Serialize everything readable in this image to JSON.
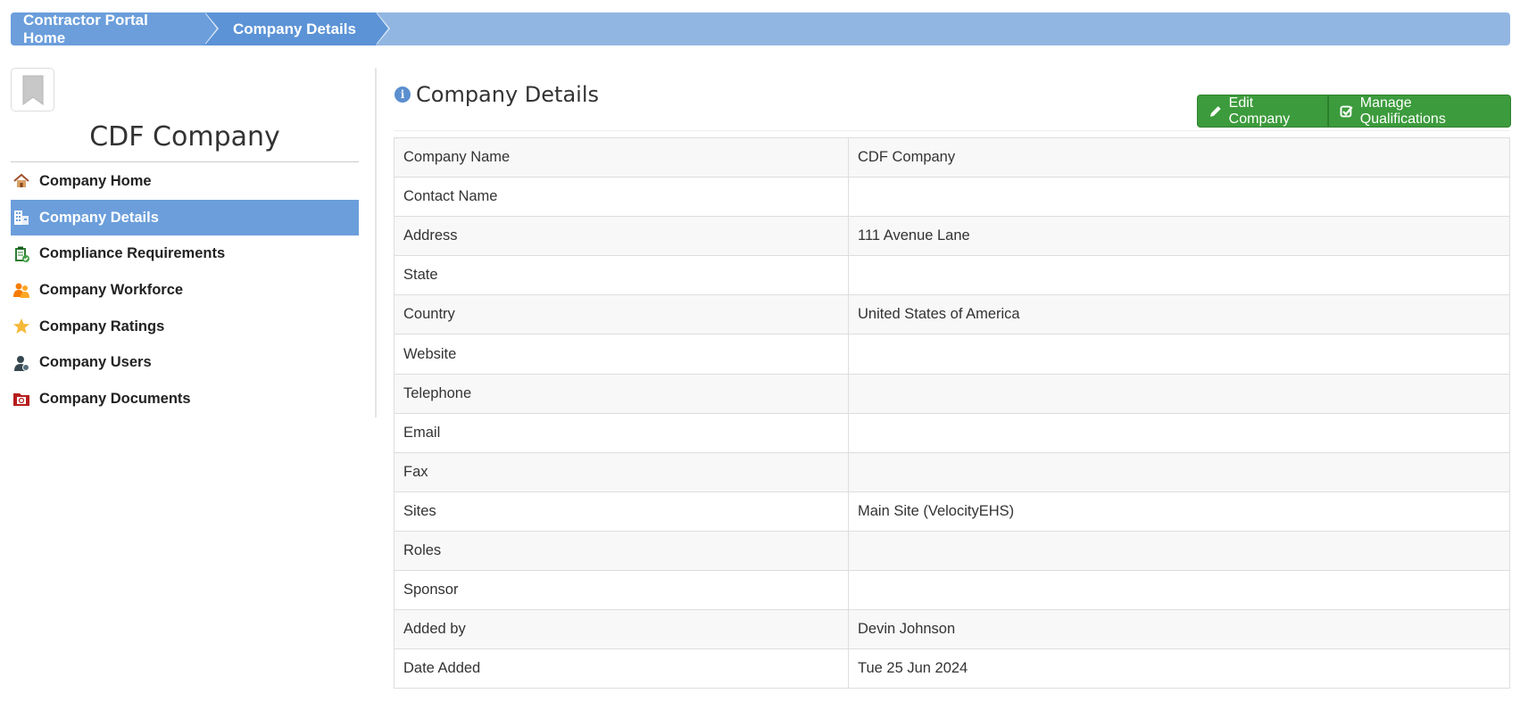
{
  "breadcrumb": {
    "items": [
      {
        "label": "Contractor Portal Home"
      },
      {
        "label": "Company Details"
      }
    ]
  },
  "sidebar": {
    "company_name": "CDF Company",
    "items": [
      {
        "label": "Company Home",
        "icon": "house-icon"
      },
      {
        "label": "Company Details",
        "icon": "building-icon",
        "active": true
      },
      {
        "label": "Compliance Requirements",
        "icon": "clipboard-check-icon"
      },
      {
        "label": "Company Workforce",
        "icon": "workers-icon"
      },
      {
        "label": "Company Ratings",
        "icon": "star-icon"
      },
      {
        "label": "Company Users",
        "icon": "user-admin-icon"
      },
      {
        "label": "Company Documents",
        "icon": "folder-documents-icon"
      }
    ]
  },
  "main": {
    "title": "Company Details",
    "buttons": {
      "edit": "Edit Company",
      "manage": "Manage Qualifications"
    },
    "rows": [
      {
        "label": "Company Name",
        "value": "CDF Company"
      },
      {
        "label": "Contact Name",
        "value": ""
      },
      {
        "label": "Address",
        "value": "111 Avenue Lane"
      },
      {
        "label": "State",
        "value": ""
      },
      {
        "label": "Country",
        "value": "United States of America"
      },
      {
        "label": "Website",
        "value": ""
      },
      {
        "label": "Telephone",
        "value": ""
      },
      {
        "label": "Email",
        "value": ""
      },
      {
        "label": "Fax",
        "value": ""
      },
      {
        "label": "Sites",
        "value": "Main Site (VelocityEHS)"
      },
      {
        "label": "Roles",
        "value": ""
      },
      {
        "label": "Sponsor",
        "value": ""
      },
      {
        "label": "Added by",
        "value": "Devin Johnson"
      },
      {
        "label": "Date Added",
        "value": "Tue 25 Jun 2024"
      }
    ]
  },
  "colors": {
    "breadcrumb_bg": "#92b6e2",
    "active_nav": "#6b9edb",
    "button_green": "#3c9b3c"
  }
}
